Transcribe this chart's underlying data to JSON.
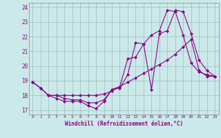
{
  "xlabel": "Windchill (Refroidissement éolien,°C)",
  "background_color": "#cce9e9",
  "line_color": "#880088",
  "ylim": [
    16.7,
    24.3
  ],
  "xlim": [
    -0.5,
    23.5
  ],
  "y_ticks": [
    17,
    18,
    19,
    20,
    21,
    22,
    23,
    24
  ],
  "x_ticks": [
    0,
    1,
    2,
    3,
    4,
    5,
    6,
    7,
    8,
    9,
    10,
    11,
    12,
    13,
    14,
    15,
    16,
    17,
    18,
    19,
    20,
    21,
    22,
    23
  ],
  "line1_y": [
    18.9,
    18.5,
    18.0,
    17.8,
    17.6,
    17.6,
    17.6,
    17.3,
    17.1,
    17.6,
    18.4,
    18.5,
    19.4,
    21.6,
    21.5,
    18.4,
    22.2,
    22.4,
    23.8,
    23.7,
    22.2,
    20.4,
    19.7,
    19.3
  ],
  "line2_y": [
    18.9,
    18.5,
    18.0,
    18.0,
    18.0,
    18.0,
    18.0,
    18.0,
    18.0,
    18.1,
    18.3,
    18.6,
    18.9,
    19.2,
    19.5,
    19.8,
    20.1,
    20.4,
    20.8,
    21.3,
    21.8,
    19.7,
    19.3,
    19.3
  ],
  "line3_y": [
    18.9,
    18.5,
    18.0,
    18.0,
    17.8,
    17.7,
    17.7,
    17.5,
    17.5,
    17.7,
    18.4,
    18.6,
    20.5,
    20.6,
    21.5,
    22.1,
    22.4,
    23.8,
    23.7,
    22.1,
    20.2,
    19.6,
    19.4,
    19.3
  ]
}
